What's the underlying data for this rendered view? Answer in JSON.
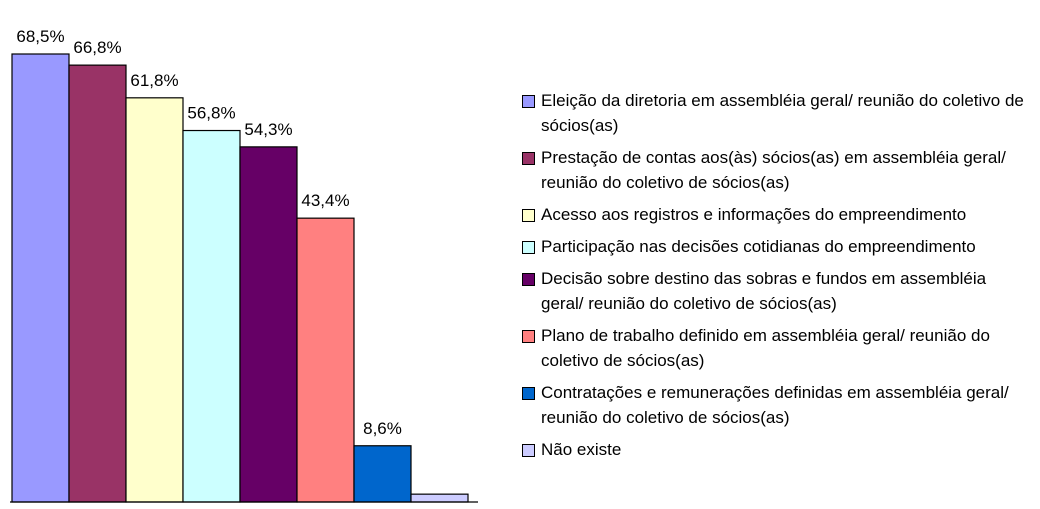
{
  "chart_data": {
    "type": "bar",
    "categories": [
      "Eleição da diretoria em assembléia geral/ reunião do coletivo de sócios(as)",
      "Prestação de contas aos(às) sócios(as) em assembléia geral/ reunião do coletivo de sócios(as)",
      "Acesso aos registros e informações do empreendimento",
      "Participação nas decisões cotidianas do empreendimento",
      "Decisão sobre destino das sobras e fundos em assembléia geral/ reunião do coletivo de sócios(as)",
      "Plano de trabalho definido em assembléia geral/ reunião do coletivo de sócios(as)",
      "Contratações e remunerações definidas em assembléia geral/ reunião do coletivo de sócios(as)",
      "Não existe"
    ],
    "values": [
      68.5,
      66.8,
      61.8,
      56.8,
      54.3,
      43.4,
      8.6,
      1.2
    ],
    "value_labels": [
      "68,5%",
      "66,8%",
      "61,8%",
      "56,8%",
      "54,3%",
      "43,4%",
      "8,6%",
      null
    ],
    "colors": [
      "#9999ff",
      "#993366",
      "#ffffcc",
      "#ccffff",
      "#660066",
      "#ff8080",
      "#0066cc",
      "#ccccff"
    ],
    "legend": "right"
  }
}
